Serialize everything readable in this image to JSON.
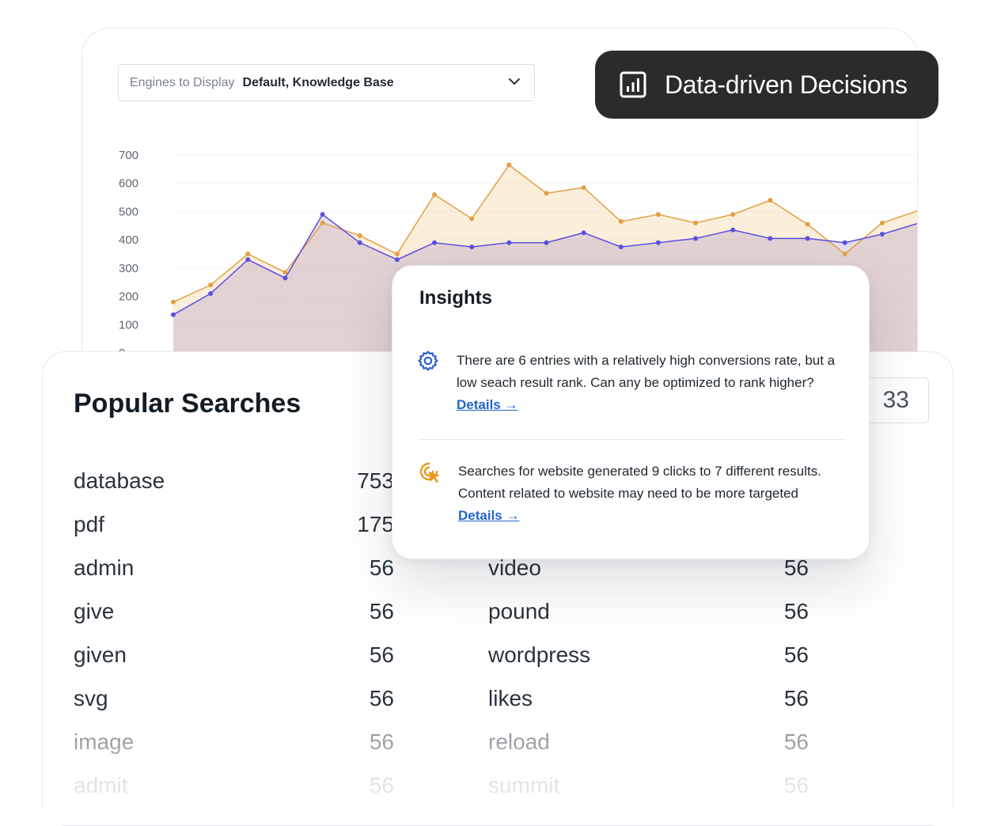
{
  "engines": {
    "label": "Engines to Display",
    "value": "Default, Knowledge Base"
  },
  "badge": {
    "text": "Data-driven Decisions",
    "icon": "bar-chart-icon"
  },
  "chart_data": {
    "type": "area",
    "y_ticks": [
      "700",
      "600",
      "500",
      "400",
      "300",
      "200",
      "100",
      "0"
    ],
    "ylim": [
      0,
      700
    ],
    "grid": true,
    "series": [
      {
        "color": "#e0a144",
        "values": [
          180,
          240,
          350,
          285,
          460,
          415,
          350,
          560,
          475,
          665,
          565,
          585,
          465,
          490,
          460,
          490,
          540,
          455,
          350,
          460,
          505
        ]
      },
      {
        "color": "#5c4fe0",
        "values": [
          135,
          210,
          330,
          265,
          490,
          390,
          330,
          390,
          375,
          390,
          390,
          425,
          375,
          390,
          405,
          435,
          405,
          405,
          390,
          420,
          460
        ]
      }
    ]
  },
  "popular": {
    "title": "Popular Searches",
    "counter": "33",
    "left": [
      {
        "term": "database",
        "count": "753"
      },
      {
        "term": "pdf",
        "count": "175"
      },
      {
        "term": "admin",
        "count": "56"
      },
      {
        "term": "give",
        "count": "56"
      },
      {
        "term": "given",
        "count": "56"
      },
      {
        "term": "svg",
        "count": "56"
      },
      {
        "term": "image",
        "count": "56"
      },
      {
        "term": "admit",
        "count": "56"
      }
    ],
    "right": [
      {
        "term": "video",
        "count": "56"
      },
      {
        "term": "pound",
        "count": "56"
      },
      {
        "term": "wordpress",
        "count": "56"
      },
      {
        "term": "likes",
        "count": "56"
      },
      {
        "term": "reload",
        "count": "56"
      },
      {
        "term": "summit",
        "count": "56"
      }
    ]
  },
  "insights": {
    "title": "Insights",
    "items": [
      {
        "icon": "gear-icon",
        "text": "There are 6 entries with a relatively high conversions rate, but a low seach result rank. Can any be optimized to rank higher?",
        "link": "Details →"
      },
      {
        "icon": "cursor-click-icon",
        "text": "Searches for website generated 9 clicks to 7 different results. Content related to website may need to be more targeted",
        "link": "Details →"
      }
    ]
  }
}
